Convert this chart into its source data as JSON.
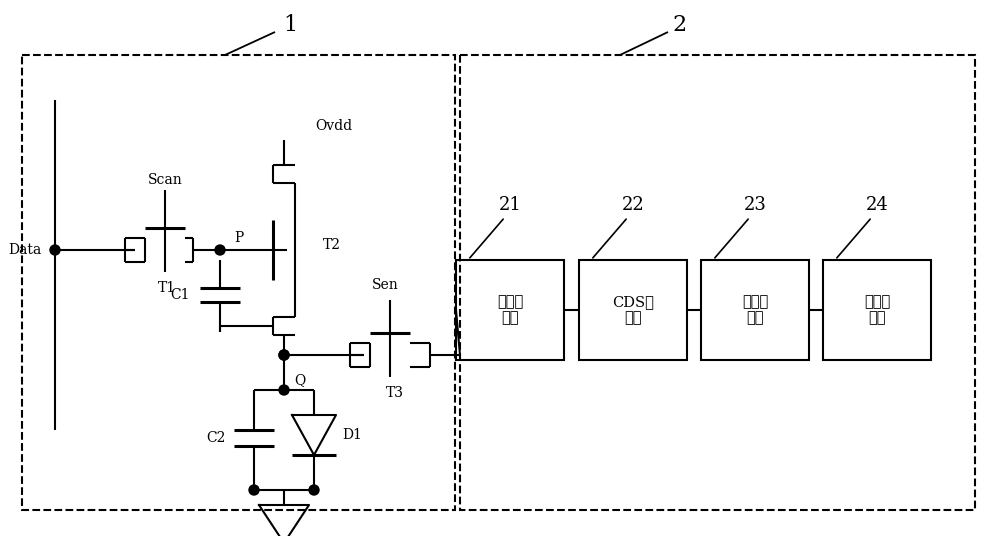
{
  "bg_color": "#ffffff",
  "line_color": "#000000",
  "fig_width": 10.0,
  "fig_height": 5.36,
  "box1_label": "1",
  "box2_label": "2",
  "labels": {
    "Data": "Data",
    "Scan": "Scan",
    "Ovdd": "Ovdd",
    "Sen": "Sen",
    "T1": "T1",
    "T2": "T2",
    "T3": "T3",
    "C1": "C1",
    "C2": "C2",
    "D1": "D1",
    "P": "P",
    "Q": "Q",
    "block21": "电流积\n分器",
    "block22": "CDS采\n样器",
    "block23": "模数转\n换器",
    "block24": "中央处\n理器",
    "num21": "21",
    "num22": "22",
    "num23": "23",
    "num24": "24"
  }
}
